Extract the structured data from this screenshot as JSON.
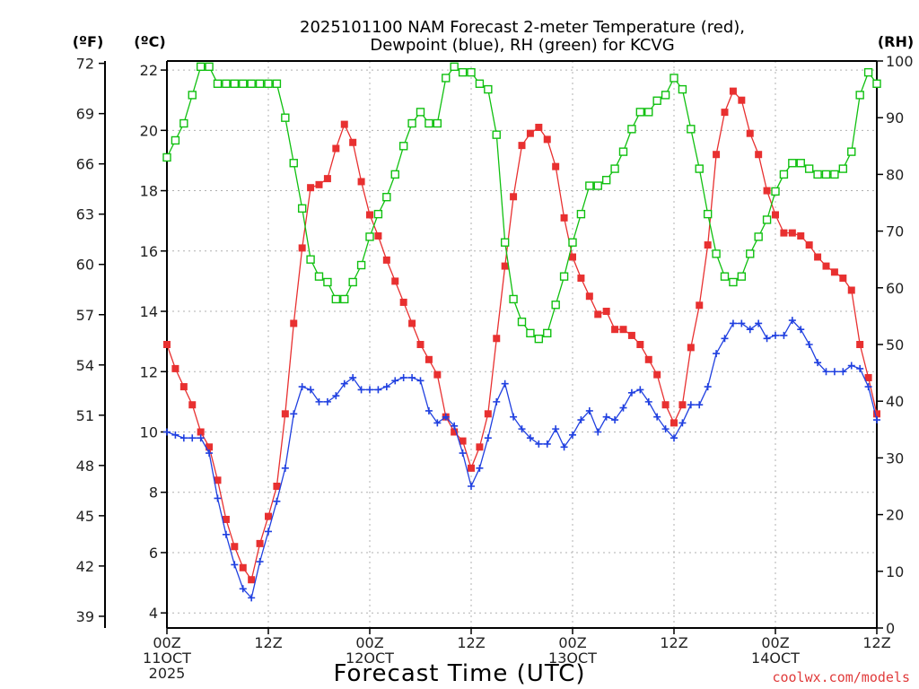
{
  "chart_data": {
    "type": "line",
    "title_lines": [
      "2025101100 NAM Forecast 2-meter Temperature (red),",
      "Dewpoint (blue), RH (green) for KCVG"
    ],
    "xlabel": "Forecast Time (UTC)",
    "credit": "coolwx.com/models",
    "units": {
      "fahrenheit": "(ºF)",
      "celsius": "(ºC)",
      "rh": "(RH)"
    },
    "x_hours_range": [
      0,
      84
    ],
    "x_ticks": [
      {
        "hour": 0,
        "lines": [
          "00Z",
          "11OCT",
          "2025"
        ]
      },
      {
        "hour": 12,
        "lines": [
          "12Z"
        ]
      },
      {
        "hour": 24,
        "lines": [
          "00Z",
          "12OCT"
        ]
      },
      {
        "hour": 36,
        "lines": [
          "12Z"
        ]
      },
      {
        "hour": 48,
        "lines": [
          "00Z",
          "13OCT"
        ]
      },
      {
        "hour": 60,
        "lines": [
          "12Z"
        ]
      },
      {
        "hour": 72,
        "lines": [
          "00Z",
          "14OCT"
        ]
      },
      {
        "hour": 84,
        "lines": [
          "12Z"
        ]
      }
    ],
    "celsius_range": [
      3.5,
      22.3
    ],
    "celsius_ticks": [
      4,
      6,
      8,
      10,
      12,
      14,
      16,
      18,
      20,
      22
    ],
    "fahrenheit_ticks": [
      39,
      42,
      45,
      48,
      51,
      54,
      57,
      60,
      63,
      66,
      69,
      72
    ],
    "rh_range": [
      0,
      100
    ],
    "rh_ticks": [
      0,
      10,
      20,
      30,
      40,
      50,
      60,
      70,
      80,
      90,
      100
    ],
    "grid": true,
    "colors": {
      "temperature": "#e83030",
      "dewpoint": "#2040e0",
      "rh": "#10c010"
    },
    "series": [
      {
        "key": "temperature",
        "axis": "celsius",
        "marker": "filled-square",
        "points": [
          [
            0,
            12.9
          ],
          [
            1,
            12.1
          ],
          [
            2,
            11.5
          ],
          [
            3,
            10.9
          ],
          [
            4,
            10.0
          ],
          [
            5,
            9.5
          ],
          [
            6,
            8.4
          ],
          [
            7,
            7.1
          ],
          [
            8,
            6.2
          ],
          [
            9,
            5.5
          ],
          [
            10,
            5.1
          ],
          [
            11,
            6.3
          ],
          [
            12,
            7.2
          ],
          [
            13,
            8.2
          ],
          [
            14,
            10.6
          ],
          [
            15,
            13.6
          ],
          [
            16,
            16.1
          ],
          [
            17,
            18.1
          ],
          [
            18,
            18.2
          ],
          [
            19,
            18.4
          ],
          [
            20,
            19.4
          ],
          [
            21,
            20.2
          ],
          [
            22,
            19.6
          ],
          [
            23,
            18.3
          ],
          [
            24,
            17.2
          ],
          [
            25,
            16.5
          ],
          [
            26,
            15.7
          ],
          [
            27,
            15.0
          ],
          [
            28,
            14.3
          ],
          [
            29,
            13.6
          ],
          [
            30,
            12.9
          ],
          [
            31,
            12.4
          ],
          [
            32,
            11.9
          ],
          [
            33,
            10.5
          ],
          [
            34,
            10.0
          ],
          [
            35,
            9.7
          ],
          [
            36,
            8.8
          ],
          [
            37,
            9.5
          ],
          [
            38,
            10.6
          ],
          [
            39,
            13.1
          ],
          [
            40,
            15.5
          ],
          [
            41,
            17.8
          ],
          [
            42,
            19.5
          ],
          [
            43,
            19.9
          ],
          [
            44,
            20.1
          ],
          [
            45,
            19.7
          ],
          [
            46,
            18.8
          ],
          [
            47,
            17.1
          ],
          [
            48,
            15.8
          ],
          [
            49,
            15.1
          ],
          [
            50,
            14.5
          ],
          [
            51,
            13.9
          ],
          [
            52,
            14.0
          ],
          [
            53,
            13.4
          ],
          [
            54,
            13.4
          ],
          [
            55,
            13.2
          ],
          [
            56,
            12.9
          ],
          [
            57,
            12.4
          ],
          [
            58,
            11.9
          ],
          [
            59,
            10.9
          ],
          [
            60,
            10.3
          ],
          [
            61,
            10.9
          ],
          [
            62,
            12.8
          ],
          [
            63,
            14.2
          ],
          [
            64,
            16.2
          ],
          [
            65,
            19.2
          ],
          [
            66,
            20.6
          ],
          [
            67,
            21.3
          ],
          [
            68,
            21.0
          ],
          [
            69,
            19.9
          ],
          [
            70,
            19.2
          ],
          [
            71,
            18.0
          ],
          [
            72,
            17.2
          ],
          [
            73,
            16.6
          ],
          [
            74,
            16.6
          ],
          [
            75,
            16.5
          ],
          [
            76,
            16.2
          ],
          [
            77,
            15.8
          ],
          [
            78,
            15.5
          ],
          [
            79,
            15.3
          ],
          [
            80,
            15.1
          ],
          [
            81,
            14.7
          ],
          [
            82,
            12.9
          ],
          [
            83,
            11.8
          ],
          [
            84,
            10.6
          ]
        ]
      },
      {
        "key": "dewpoint",
        "axis": "celsius",
        "marker": "plus",
        "points": [
          [
            0,
            10.0
          ],
          [
            1,
            9.9
          ],
          [
            2,
            9.8
          ],
          [
            3,
            9.8
          ],
          [
            4,
            9.8
          ],
          [
            5,
            9.3
          ],
          [
            6,
            7.8
          ],
          [
            7,
            6.6
          ],
          [
            8,
            5.6
          ],
          [
            9,
            4.8
          ],
          [
            10,
            4.5
          ],
          [
            11,
            5.7
          ],
          [
            12,
            6.7
          ],
          [
            13,
            7.7
          ],
          [
            14,
            8.8
          ],
          [
            15,
            10.6
          ],
          [
            16,
            11.5
          ],
          [
            17,
            11.4
          ],
          [
            18,
            11.0
          ],
          [
            19,
            11.0
          ],
          [
            20,
            11.2
          ],
          [
            21,
            11.6
          ],
          [
            22,
            11.8
          ],
          [
            23,
            11.4
          ],
          [
            24,
            11.4
          ],
          [
            25,
            11.4
          ],
          [
            26,
            11.5
          ],
          [
            27,
            11.7
          ],
          [
            28,
            11.8
          ],
          [
            29,
            11.8
          ],
          [
            30,
            11.7
          ],
          [
            31,
            10.7
          ],
          [
            32,
            10.3
          ],
          [
            33,
            10.5
          ],
          [
            34,
            10.2
          ],
          [
            35,
            9.3
          ],
          [
            36,
            8.2
          ],
          [
            37,
            8.8
          ],
          [
            38,
            9.8
          ],
          [
            39,
            11.0
          ],
          [
            40,
            11.6
          ],
          [
            41,
            10.5
          ],
          [
            42,
            10.1
          ],
          [
            43,
            9.8
          ],
          [
            44,
            9.6
          ],
          [
            45,
            9.6
          ],
          [
            46,
            10.1
          ],
          [
            47,
            9.5
          ],
          [
            48,
            9.9
          ],
          [
            49,
            10.4
          ],
          [
            50,
            10.7
          ],
          [
            51,
            10.0
          ],
          [
            52,
            10.5
          ],
          [
            53,
            10.4
          ],
          [
            54,
            10.8
          ],
          [
            55,
            11.3
          ],
          [
            56,
            11.4
          ],
          [
            57,
            11.0
          ],
          [
            58,
            10.5
          ],
          [
            59,
            10.1
          ],
          [
            60,
            9.8
          ],
          [
            61,
            10.3
          ],
          [
            62,
            10.9
          ],
          [
            63,
            10.9
          ],
          [
            64,
            11.5
          ],
          [
            65,
            12.6
          ],
          [
            66,
            13.1
          ],
          [
            67,
            13.6
          ],
          [
            68,
            13.6
          ],
          [
            69,
            13.4
          ],
          [
            70,
            13.6
          ],
          [
            71,
            13.1
          ],
          [
            72,
            13.2
          ],
          [
            73,
            13.2
          ],
          [
            74,
            13.7
          ],
          [
            75,
            13.4
          ],
          [
            76,
            12.9
          ],
          [
            77,
            12.3
          ],
          [
            78,
            12.0
          ],
          [
            79,
            12.0
          ],
          [
            80,
            12.0
          ],
          [
            81,
            12.2
          ],
          [
            82,
            12.1
          ],
          [
            83,
            11.5
          ],
          [
            84,
            10.4
          ]
        ]
      },
      {
        "key": "rh",
        "axis": "rh",
        "marker": "open-square",
        "points": [
          [
            0,
            83
          ],
          [
            1,
            86
          ],
          [
            2,
            89
          ],
          [
            3,
            94
          ],
          [
            4,
            99
          ],
          [
            5,
            99
          ],
          [
            6,
            96
          ],
          [
            7,
            96
          ],
          [
            8,
            96
          ],
          [
            9,
            96
          ],
          [
            10,
            96
          ],
          [
            11,
            96
          ],
          [
            12,
            96
          ],
          [
            13,
            96
          ],
          [
            14,
            90
          ],
          [
            15,
            82
          ],
          [
            16,
            74
          ],
          [
            17,
            65
          ],
          [
            18,
            62
          ],
          [
            19,
            61
          ],
          [
            20,
            58
          ],
          [
            21,
            58
          ],
          [
            22,
            61
          ],
          [
            23,
            64
          ],
          [
            24,
            69
          ],
          [
            25,
            73
          ],
          [
            26,
            76
          ],
          [
            27,
            80
          ],
          [
            28,
            85
          ],
          [
            29,
            89
          ],
          [
            30,
            91
          ],
          [
            31,
            89
          ],
          [
            32,
            89
          ],
          [
            33,
            97
          ],
          [
            34,
            99
          ],
          [
            35,
            98
          ],
          [
            36,
            98
          ],
          [
            37,
            96
          ],
          [
            38,
            95
          ],
          [
            39,
            87
          ],
          [
            40,
            68
          ],
          [
            41,
            58
          ],
          [
            42,
            54
          ],
          [
            43,
            52
          ],
          [
            44,
            51
          ],
          [
            45,
            52
          ],
          [
            46,
            57
          ],
          [
            47,
            62
          ],
          [
            48,
            68
          ],
          [
            49,
            73
          ],
          [
            50,
            78
          ],
          [
            51,
            78
          ],
          [
            52,
            79
          ],
          [
            53,
            81
          ],
          [
            54,
            84
          ],
          [
            55,
            88
          ],
          [
            56,
            91
          ],
          [
            57,
            91
          ],
          [
            58,
            93
          ],
          [
            59,
            94
          ],
          [
            60,
            97
          ],
          [
            61,
            95
          ],
          [
            62,
            88
          ],
          [
            63,
            81
          ],
          [
            64,
            73
          ],
          [
            65,
            66
          ],
          [
            66,
            62
          ],
          [
            67,
            61
          ],
          [
            68,
            62
          ],
          [
            69,
            66
          ],
          [
            70,
            69
          ],
          [
            71,
            72
          ],
          [
            72,
            77
          ],
          [
            73,
            80
          ],
          [
            74,
            82
          ],
          [
            75,
            82
          ],
          [
            76,
            81
          ],
          [
            77,
            80
          ],
          [
            78,
            80
          ],
          [
            79,
            80
          ],
          [
            80,
            81
          ],
          [
            81,
            84
          ],
          [
            82,
            94
          ],
          [
            83,
            98
          ],
          [
            84,
            96
          ]
        ]
      }
    ]
  }
}
